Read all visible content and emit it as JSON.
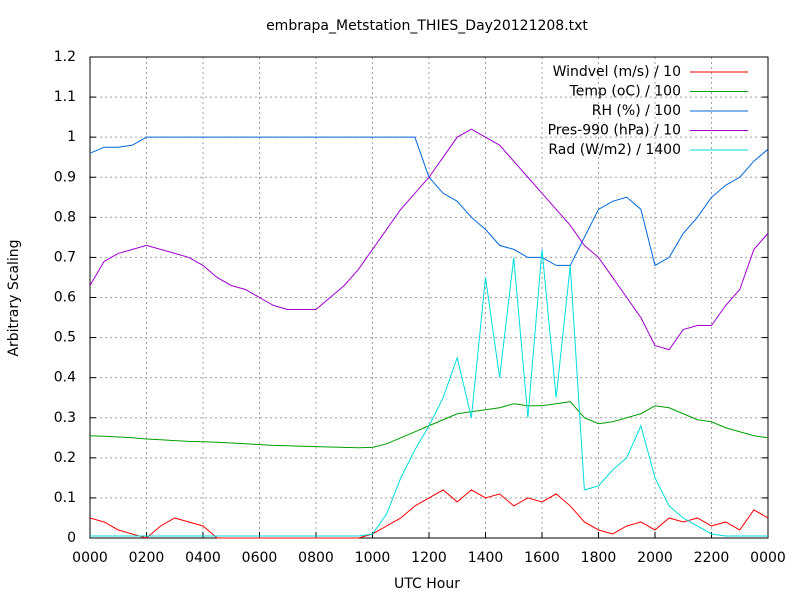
{
  "chart_data": {
    "type": "line",
    "title": "embrapa_Metstation_THIES_Day20121208.txt",
    "xlabel": "UTC Hour",
    "ylabel": "Arbitrary Scaling",
    "x": [
      0,
      0.5,
      1,
      1.5,
      2,
      2.5,
      3,
      3.5,
      4,
      4.5,
      5,
      5.5,
      6,
      6.5,
      7,
      7.5,
      8,
      8.5,
      9,
      9.5,
      10,
      10.5,
      11,
      11.5,
      12,
      12.5,
      13,
      13.5,
      14,
      14.5,
      15,
      15.5,
      16,
      16.5,
      17,
      17.5,
      18,
      18.5,
      19,
      19.5,
      20,
      20.5,
      21,
      21.5,
      22,
      22.5,
      23,
      23.5,
      24
    ],
    "xlim": [
      0,
      24
    ],
    "xticks": [
      {
        "value": 0,
        "label": "0000"
      },
      {
        "value": 2,
        "label": "0200"
      },
      {
        "value": 4,
        "label": "0400"
      },
      {
        "value": 6,
        "label": "0600"
      },
      {
        "value": 8,
        "label": "0800"
      },
      {
        "value": 10,
        "label": "1000"
      },
      {
        "value": 12,
        "label": "1200"
      },
      {
        "value": 14,
        "label": "1400"
      },
      {
        "value": 16,
        "label": "1600"
      },
      {
        "value": 18,
        "label": "1800"
      },
      {
        "value": 20,
        "label": "2000"
      },
      {
        "value": 22,
        "label": "2200"
      },
      {
        "value": 24,
        "label": "0000"
      }
    ],
    "ylim": [
      0,
      1.2
    ],
    "yticks": [
      0,
      0.1,
      0.2,
      0.3,
      0.4,
      0.5,
      0.6,
      0.7,
      0.8,
      0.9,
      1,
      1.1,
      1.2
    ],
    "grid": true,
    "legend": "top-right",
    "series": [
      {
        "name": "Windvel (m/s) / 10",
        "color": "#ff0000",
        "values": [
          0.05,
          0.04,
          0.02,
          0.01,
          0,
          0.03,
          0.05,
          0.04,
          0.03,
          0,
          0,
          0,
          0,
          0,
          0,
          0,
          0,
          0,
          0,
          0,
          0.01,
          0.03,
          0.05,
          0.08,
          0.1,
          0.12,
          0.09,
          0.12,
          0.1,
          0.11,
          0.08,
          0.1,
          0.09,
          0.11,
          0.08,
          0.04,
          0.02,
          0.01,
          0.03,
          0.04,
          0.02,
          0.05,
          0.04,
          0.05,
          0.03,
          0.04,
          0.02,
          0.07,
          0.05
        ]
      },
      {
        "name": "Temp (oC) / 100",
        "color": "#00a000",
        "values": [
          0.255,
          0.254,
          0.252,
          0.25,
          0.247,
          0.245,
          0.243,
          0.241,
          0.24,
          0.239,
          0.237,
          0.235,
          0.233,
          0.231,
          0.23,
          0.229,
          0.228,
          0.227,
          0.226,
          0.225,
          0.226,
          0.235,
          0.25,
          0.265,
          0.28,
          0.295,
          0.31,
          0.315,
          0.32,
          0.325,
          0.335,
          0.33,
          0.33,
          0.335,
          0.34,
          0.3,
          0.285,
          0.29,
          0.3,
          0.31,
          0.33,
          0.325,
          0.31,
          0.295,
          0.29,
          0.275,
          0.265,
          0.255,
          0.25
        ]
      },
      {
        "name": "RH (%) / 100",
        "color": "#0066dd",
        "values": [
          0.96,
          0.975,
          0.975,
          0.98,
          1,
          1,
          1,
          1,
          1,
          1,
          1,
          1,
          1,
          1,
          1,
          1,
          1,
          1,
          1,
          1,
          1,
          1,
          1,
          1,
          0.9,
          0.86,
          0.84,
          0.8,
          0.77,
          0.73,
          0.72,
          0.7,
          0.7,
          0.68,
          0.68,
          0.75,
          0.82,
          0.84,
          0.85,
          0.82,
          0.68,
          0.7,
          0.76,
          0.8,
          0.85,
          0.88,
          0.9,
          0.94,
          0.97
        ]
      },
      {
        "name": "Pres-990 (hPa) / 10",
        "color": "#a000d0",
        "values": [
          0.63,
          0.69,
          0.71,
          0.72,
          0.73,
          0.72,
          0.71,
          0.7,
          0.68,
          0.65,
          0.63,
          0.62,
          0.6,
          0.58,
          0.57,
          0.57,
          0.57,
          0.6,
          0.63,
          0.67,
          0.72,
          0.77,
          0.82,
          0.86,
          0.9,
          0.95,
          1.0,
          1.02,
          1.0,
          0.98,
          0.94,
          0.9,
          0.86,
          0.82,
          0.78,
          0.73,
          0.7,
          0.65,
          0.6,
          0.55,
          0.48,
          0.47,
          0.52,
          0.53,
          0.53,
          0.58,
          0.62,
          0.72,
          0.76
        ]
      },
      {
        "name": "Rad (W/m2) / 1400",
        "color": "#00dddd",
        "values": [
          0.005,
          0.005,
          0.005,
          0.005,
          0.005,
          0.005,
          0.005,
          0.005,
          0.005,
          0.005,
          0.005,
          0.005,
          0.005,
          0.005,
          0.005,
          0.005,
          0.005,
          0.005,
          0.005,
          0.005,
          0.01,
          0.06,
          0.15,
          0.22,
          0.28,
          0.35,
          0.45,
          0.3,
          0.65,
          0.4,
          0.7,
          0.3,
          0.72,
          0.35,
          0.68,
          0.12,
          0.13,
          0.17,
          0.2,
          0.28,
          0.15,
          0.08,
          0.05,
          0.03,
          0.01,
          0.005,
          0.005,
          0.005,
          0.005
        ]
      }
    ]
  }
}
